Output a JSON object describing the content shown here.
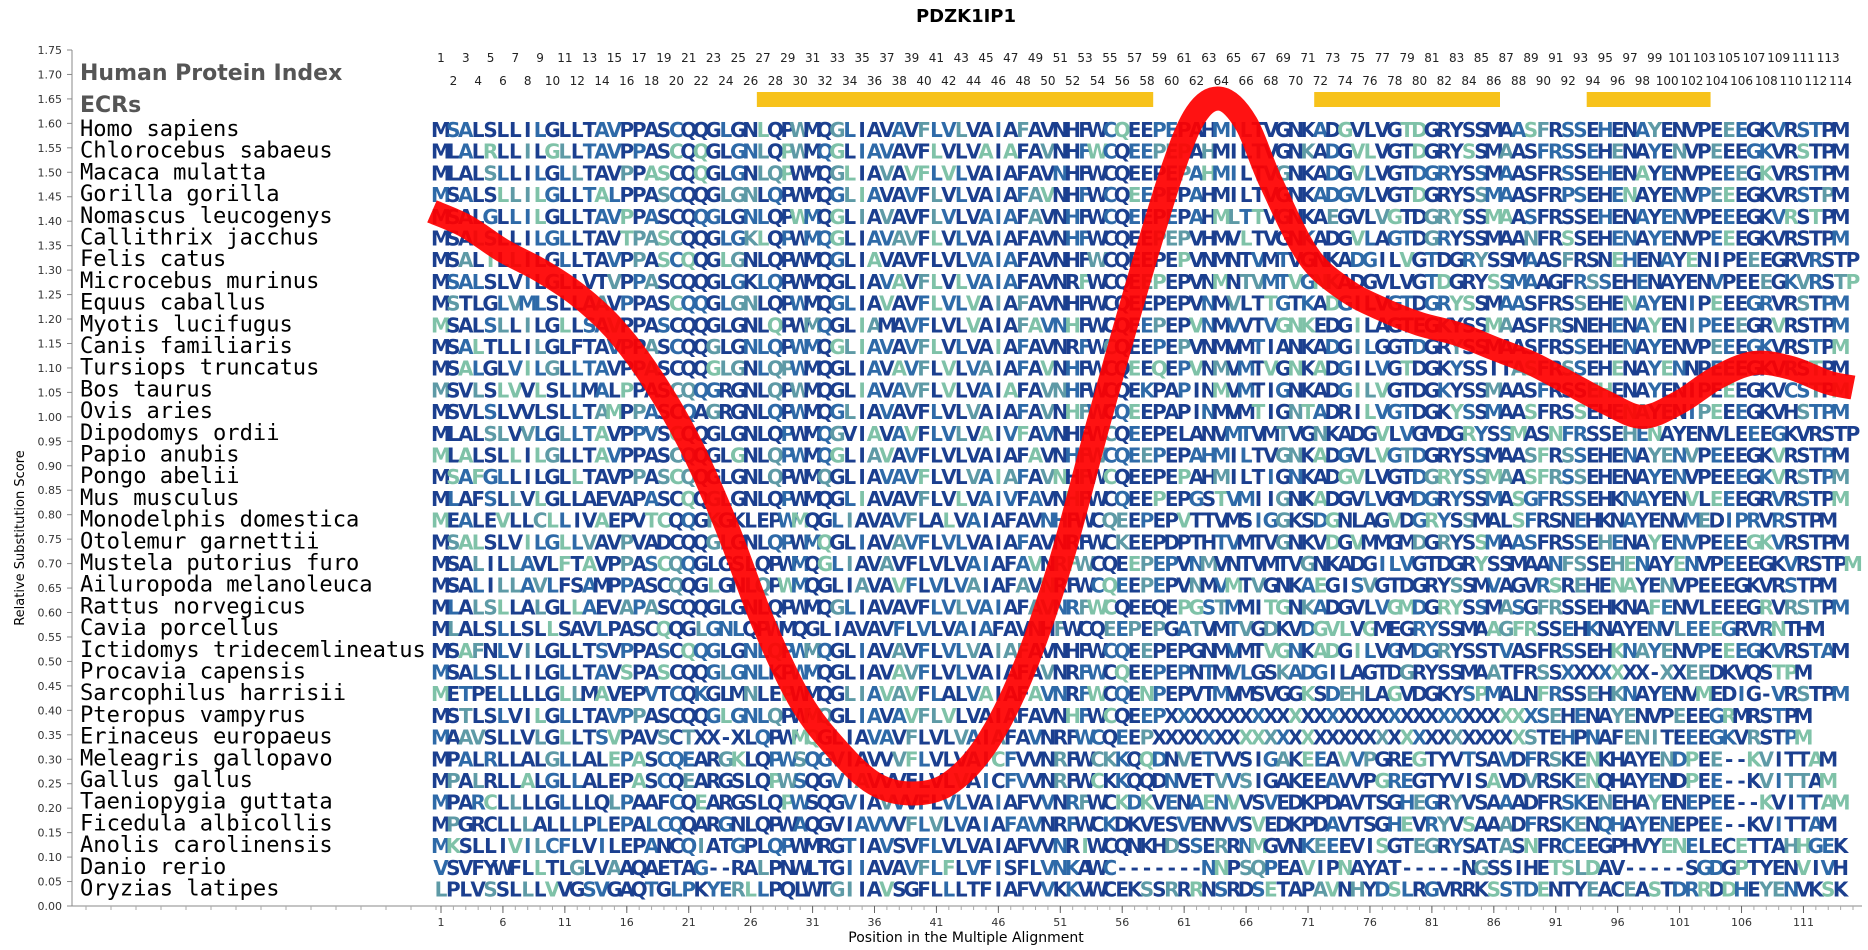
{
  "chart_data": {
    "type": "line",
    "title": "PDZK1IP1",
    "xlabel": "Position in the Multiple Alignment",
    "ylabel": "Relative Substitution Score",
    "ylim": [
      0.0,
      1.75
    ],
    "xlim": [
      1,
      115
    ],
    "yticks": [
      "0.00",
      "0.05",
      "0.10",
      "0.15",
      "0.20",
      "0.25",
      "0.30",
      "0.35",
      "0.40",
      "0.45",
      "0.50",
      "0.55",
      "0.60",
      "0.65",
      "0.70",
      "0.75",
      "0.80",
      "0.85",
      "0.90",
      "0.95",
      "1.00",
      "1.05",
      "1.10",
      "1.15",
      "1.20",
      "1.25",
      "1.30",
      "1.35",
      "1.40",
      "1.45",
      "1.50",
      "1.55",
      "1.60",
      "1.65",
      "1.70",
      "1.75"
    ],
    "xticks": [
      1,
      6,
      11,
      16,
      21,
      26,
      31,
      36,
      41,
      46,
      51,
      56,
      61,
      66,
      71,
      76,
      81,
      86,
      91,
      96,
      101,
      106,
      111
    ],
    "index_label": "Human Protein Index",
    "ecr_label": "ECRs",
    "human_index_odd": [
      "1",
      "3",
      "5",
      "7",
      "9",
      "11",
      "13",
      "15",
      "17",
      "19",
      "21",
      "23",
      "25",
      "27",
      "29",
      "31",
      "33",
      "35",
      "37",
      "39",
      "41",
      "43",
      "45",
      "47",
      "49",
      "51",
      "53",
      "55",
      "57",
      "59",
      "61",
      "63",
      "65",
      "67",
      "69",
      "71",
      "73",
      "75",
      "77",
      "79",
      "81",
      "83",
      "85",
      "87",
      "89",
      "91",
      "93",
      "95",
      "97",
      "99",
      "101",
      "103",
      "105",
      "107",
      "109",
      "111",
      "113"
    ],
    "human_index_even": [
      "2",
      "4",
      "6",
      "8",
      "10",
      "12",
      "14",
      "16",
      "18",
      "20",
      "22",
      "24",
      "26",
      "28",
      "30",
      "32",
      "34",
      "36",
      "38",
      "40",
      "42",
      "44",
      "46",
      "48",
      "50",
      "52",
      "54",
      "56",
      "58",
      "60",
      "62",
      "64",
      "66",
      "68",
      "70",
      "72",
      "74",
      "76",
      "78",
      "80",
      "82",
      "84",
      "86",
      "88",
      "90",
      "92",
      "94",
      "96",
      "98",
      "100",
      "102",
      "104",
      "106",
      "108",
      "110",
      "112",
      "114"
    ],
    "ecr_color": "#f7c21b",
    "ecrs": [
      [
        27,
        58
      ],
      [
        72,
        86
      ],
      [
        94,
        103
      ]
    ],
    "curve_color": "#ff0000",
    "series": [
      {
        "x": [
          1,
          3,
          6,
          9,
          12,
          15,
          18,
          21,
          24,
          27,
          30,
          33,
          36,
          39,
          42,
          45,
          48,
          51,
          54,
          57,
          60,
          62,
          64,
          66,
          68,
          71,
          74,
          77,
          80,
          83,
          86,
          89,
          92,
          95,
          98,
          101,
          104,
          107,
          110,
          113,
          115
        ],
        "y": [
          1.42,
          1.39,
          1.34,
          1.3,
          1.25,
          1.18,
          1.08,
          0.95,
          0.78,
          0.58,
          0.42,
          0.32,
          0.25,
          0.23,
          0.25,
          0.33,
          0.48,
          0.7,
          0.98,
          1.25,
          1.5,
          1.62,
          1.65,
          1.6,
          1.48,
          1.33,
          1.26,
          1.22,
          1.19,
          1.17,
          1.14,
          1.11,
          1.07,
          1.03,
          1.0,
          1.03,
          1.08,
          1.11,
          1.1,
          1.07,
          1.06
        ]
      }
    ],
    "color_palette": [
      "#1b3f8f",
      "#2e6aa8",
      "#5e9aa6",
      "#7fc2a8"
    ],
    "rows": [
      {
        "species": "Homo sapiens",
        "seq": "MSALSLLILGLLTAVPPASCQQGLGNLQPWMQGLIAVAVFLVLVAIAFAVNHFWCQEEPEPAHMILTVGNKADGVLVGTDGRYSSMAASFRSSEHENAYENVPEEEGKVRSTPM"
      },
      {
        "species": "Chlorocebus sabaeus",
        "seq": "MLALRLLILGLLTAVPPASCQQGLGNLQPWMQGLIAVAVFLVLVAIAFAVNHFWCQEEPEPAHMILTVGNKADGVLVGTDGRYSSMAASFRSSEHENAYENVPEEEGKVRSTPM"
      },
      {
        "species": "Macaca mulatta",
        "seq": "MLALSLLILGLLTAVPPASCQQGLGNLQPWMQGLIAVAVFLVLVAIAFAVNHFWCQEEPEPAHMILTVGNKADGVLVGTDGRYSSMAASFRSSEHENAYENVPEEEGKVRSTPM"
      },
      {
        "species": "Gorilla gorilla",
        "seq": "MSALSLLILGLLTALPPASCQQGLGNLQPWMQGLIAVAVFLVLVAIAFAVNHFWCQEEPEPAHMILTVGNKADGVLVGTDGRYSSMAASFRPSEHENAYENVPEEEGKVRSTPM"
      },
      {
        "species": "Nomascus leucogenys",
        "seq": "MSALGLLILGLLTAVPPASCQQGLGNLQPWMQGLIAVAVFLVLVAIAFAVNHFWCQEEPEPAHMLTTVGNKAEGVLVGTDGRYSSMAASFRSSEHENAYENVPEEEGKVRSTPM"
      },
      {
        "species": "Callithrix jacchus",
        "seq": "MSALSLLILGLLTAVTPASCQQGLGKLQPWMQGLIAVAVFLVLVAIAFAVNHFWCQEEPEPVHMVLTVGNKADGVLAGTDGRYSSMAANFRSSEHENAYENVPEEEGKVRSTPM"
      },
      {
        "species": "Felis catus",
        "seq": "MSALILLILGLLTAVPPASCQQGLGNLQPWMQGLIAVAVFLVLVAIAFAVNHFWCQEEPEPVNMNTVMTVGNKADGILVGTDGRYSSMAASFRSNEHENAYENIPEEEGRVRSTPM"
      },
      {
        "species": "Microcebus murinus",
        "seq": "MSALSLVILGLLVTVPPASCQQGLGKLQPWMQGLIAVAVFLVLVAIAFAVNRFWCQEEPEPVNMNTVMTVGNKADGVLVGTDGRYSSMAAGFRSSEHENAYENVPEEEGKVRSTPM"
      },
      {
        "species": "Equus caballus",
        "seq": "MSTLGLVMLSLLAAVPPASCQQGLGNLQPWMQGLIAVAVFLVLVAIAFAVNHFWCQEEPEPVNMVLTTGTKADGILVGTDGRYSSMAASFRSSEHENAYENIPEEEGRVRSTPM"
      },
      {
        "species": "Myotis lucifugus",
        "seq": "MSALSLLILGLLSAVPPASCQQGLGNLQPWMQGLIAMAVFLVLVAIAFAVNHFWCQEEPEPVNMVVTVGNKEDGILAGTEGKYSSMAASFRSNEHENAYENIPEEEGRVRSTPM"
      },
      {
        "species": "Canis familiaris",
        "seq": "MSALTLLILGLFTAVPPASCQQGLGNLQPWMQGLIAVAVFLVLVAIAFAVNRFWCQEEPEPVNMVMTIANKADGILGGTDGRYSSMAASFRSSEHENAYENVPEEEGKVRSTPM"
      },
      {
        "species": "Tursiops truncatus",
        "seq": "MSALGLVILGLLTAVPPASCQQGLGNLQPWMQGLIAVAVFLVLVAIAFAVNHFWCQEEQEPVNMVMTVGNKADGILVGTDGKYSSITASFRSSEHENAYENNPEEEGKVRSTPM"
      },
      {
        "species": "Bos taurus",
        "seq": "MSVLSLVVLSLLMALPPASCQQGRGNLQPWMQGLIAVAVFLVLVAIAFAVNHFWCQEKPAPINMVMTIGNKADGILVGTDGKYSSMAASFRSSEHENAYENIPEEEGKVCSTPM"
      },
      {
        "species": "Ovis aries",
        "seq": "MSVLSLVVLSLLTAMPPASCQAGRGNLQPWMQGLIAVAVFLVLVAIAFAVNHFWCQEEPAPINMVMTIGNTADRILVGTDGKYSSMAASFRSSEHENAYENIPEEEGKVHSTPM"
      },
      {
        "species": "Dipodomys ordii",
        "seq": "MLALSLVVLGLLTAVPPVSCQQGLGNLQPWMQGVIAVAVFLVLVAIVFAVNHFWCQEEPELANVMTVMTVGNKADGVLVGMDGRYSSMASNFRSSEHENAYENVLEEEGKVRSTPM"
      },
      {
        "species": "Papio anubis",
        "seq": "MLALSLLILGLLTAVPPASCQQGLGNLQPWMQGLIAVAVFLVLVAIAFAVNHFWCQEEPEPAHMILTVGNKADGVLVGTDGRYSSMAASFRSSEHENAYENVPEEEGKVRSTPM"
      },
      {
        "species": "Pongo abelii",
        "seq": "MSAFGLLILGLLTAVPPASCQQGLGNLQPWMQGLIAVAVFLVLVAIAFAVNHFWCQEEPEPAHMILTIGNKADGVLVGTDGRYSSMAASFRSSEHENAYENVPEEEGKVRSTPM"
      },
      {
        "species": "Mus musculus",
        "seq": "MLAFSLLVLGLLAEVAPASCQQGLGNLQPWMQGLIAVAVFLVLVAIVFAVNHFWCQEEPEPGSTVMIIGNKADGVLVGMDGRYSSMASGFRSSEHKNAYENVLEEEGRVRSTPM"
      },
      {
        "species": "Monodelphis domestica",
        "seq": "MEALEVLLCLLIVAEPVTCQQGKGKLEPWMQGLIAVAVFLALVAIAFAVNHFWCQEEPEPVTTVMSIGGKSDGNLAGVDGRYSSMALSFRSNEHKNAYENVMEDIPRVRSTPM"
      },
      {
        "species": "Otolemur garnettii",
        "seq": "MSALSLVILGLLVAVPVADCQQGLGNLQPWMQGLIAVAVFLVLVAIAFAVNRFWCKEEPDPTHTVMTVGNKVDGVMMGMDGRYSSMAASFRSSEHENAYENVPEEEGKVRSTPM"
      },
      {
        "species": "Mustela putorius furo",
        "seq": "MSALILLAVLFTAVPPASCQQGLGSLQPWMQGLIAVAVFLVLVAIAFAVNRFWCQEEPEPVNMVNTVMTVGNKADGILVGTDGRYSSMAANFSSEHENAYENVPEEEGKVRSTPM"
      },
      {
        "species": "Ailuropoda melanoleuca",
        "seq": "MSALILLAVLFSAMPPASCQQGLGNLQPWMQGLIAVAVFLVLVAIAFAVNRFWCQEEPEPVNMVMTVGNKAEGISVGTDGRYSSMVAGVRSREHENAYENVPEEEGKVRSTPM"
      },
      {
        "species": "Rattus norvegicus",
        "seq": "MLALSLLALGLLAEVAPASCQQGLGNLQPWMQGLIAVAVFLVLVAIAFAVNRFWCQEEQEPGSTMMITGNKADGVLVGMDGRYSSMASGFRSSEHKNAFENVLEEEGRVRSTPM"
      },
      {
        "species": "Cavia porcellus",
        "seq": "MLALSLLSLLSAVLPASCQQGLGNLQPWMQGLIAVAVFLVLVAIAFAVNHFWCQEEPEPGATVMTVGDKVDGVLVGMEGRYSSMAAGFRSSEHKNAYENVLEEEGRVRNTHM"
      },
      {
        "species": "Ictidomys tridecemlineatus",
        "seq": "MSAFNLVILGLLTSVPPASCQQGLGNLQPWMQGLIAVAVFLVLVAIAFAVNHFWCQEEPEPGNMVMTVGNKADGILVGMDGRYSSTVASFRSSEHKNAYENVPEEEGKVRSTAM"
      },
      {
        "species": "Procavia capensis",
        "seq": "MSALSLLILGLLTAVSPASCQQGLGNLKPWMQGLIAVAVFLVLVAIAFAVNRFWCQEEPEPNTMVLGSKADGILAGTDGRYSSMAATFRSSXXXXXXX-XXEEDKVQSTPM"
      },
      {
        "species": "Sarcophilus harrisii",
        "seq": "METPELLLLGLLMAVEPVTCQKGLMNLEPWMQGLIAVAVFLALVAIAFAVNRFWCQENPEPVTMVMSVGGKSDEHLAGVDGKYSPMALNFRSSEHKNAYENVMEDIG-VRSTPM"
      },
      {
        "species": "Pteropus vampyrus",
        "seq": "MSTLSLVILGLLTAVPPASCQQGLGNLQPWMQGLIAVAVFLVLVAIAFAVNHFWCQEEPXXXXXXXXXXXXXXXXXXXXXXXXXXXXXXSEHENAYENVPEEEGRMRSTPM"
      },
      {
        "species": "Erinaceus europaeus",
        "seq": "MAAVSLLVLGLLTSVPAVSCTXX-XLQPWMQGLIAVAVFLVLVAIAFAVNRFWCQEEPXXXXXXXXXXXXXXXXXXXXXXXXXXXXXXSTEHPNAFENITEEEGKVRSTPM"
      },
      {
        "species": "Meleagris gallopavo",
        "seq": "MPALRLLALGLLALEPASCQEARGKLQPWSQGVIAVVVFLVLVAICFVVNRFWCKKQQDNVETVVSIGAKEEAVVPGREGTYVTSAVDFRSKENKHAYENDPEE--KVITTAM"
      },
      {
        "species": "Gallus gallus",
        "seq": "MPALRLLALGLLALEPASCQEARGSLQPWSQGVIAVVVFLVLVAICFVVNRFWCKKQQDNVETVVSIGAKEEAVVPGREGTYVISAVDVRSKENQHAYENDPEE--KVITTAM"
      },
      {
        "species": "Taeniopygia guttata",
        "seq": "MPARCLLLLGLLLQLPAAFCQEARGSLQPWSQGVIAVVVFLVLVAIAFVVNRFWCKDKVENAENVVSVEDKPDAVTSGHEGRYVSAAADFRSKENEHAYENEPEE--KVITTAM"
      },
      {
        "species": "Ficedula albicollis",
        "seq": "MPGRCLLLALLLPLEPALCQQARGNLQPWAQGVIAVVVFLVLVAIAFAVNRFWCKDKVESVENVVSVEDKPDAVTSGHEVRYVSAAADFRSKENQHAYENEPEE--KVITTAM"
      },
      {
        "species": "Anolis carolinensis",
        "seq": "MKSLLIVILCFLVILEPANCQIATGPLQPWMRGTIAVSVFLVLVAIAFVVNRIWCQNKHDSSERRNMGVNKEEEVISGTEGRYSATASNFRCEEGPHVYENELECETTAHHGEK"
      },
      {
        "species": "Danio rerio",
        "seq": "VSVFYWFLLTLGLVAAQAETAG--RALPNWLTGIIAVAVFLFLVFISFLVNKAWC-------NNPSQPEAVIPNAYAT-----NGSSIHETSLDAV-----SGDGPTYENVIVH"
      },
      {
        "species": "Oryzias latipes",
        "seq": "LPLVSSLLLVVGSVGAQTGLPKYERLLPQLWTGIIAVSGFLLLTFIAFVVKKVWCEKSSRRRNSRDSETAPAVNHYDSLRGVRRKSSTDENTYEACEASTDRRDDHEYENVKSK"
      }
    ]
  }
}
